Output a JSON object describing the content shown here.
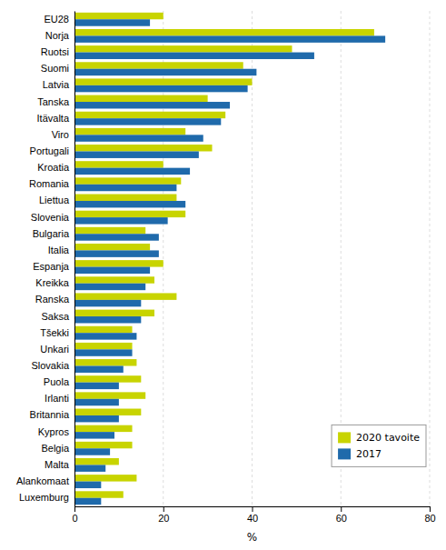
{
  "chart_data": {
    "type": "bar",
    "orientation": "horizontal",
    "categories": [
      "EU28",
      "Norja",
      "Ruotsi",
      "Suomi",
      "Latvia",
      "Tanska",
      "Itävalta",
      "Viro",
      "Portugali",
      "Kroatia",
      "Romania",
      "Liettua",
      "Slovenia",
      "Bulgaria",
      "Italia",
      "Espanja",
      "Kreikka",
      "Ranska",
      "Saksa",
      "Tšekki",
      "Unkari",
      "Slovakia",
      "Puola",
      "Irlanti",
      "Britannia",
      "Kypros",
      "Belgia",
      "Malta",
      "Alankomaat",
      "Luxemburg"
    ],
    "series": [
      {
        "name": "2020 tavoite",
        "color": "#c8d400",
        "values": [
          20,
          67.5,
          49,
          38,
          40,
          30,
          34,
          25,
          31,
          20,
          24,
          23,
          25,
          16,
          17,
          20,
          18,
          23,
          18,
          13,
          13,
          14,
          15,
          16,
          15,
          13,
          13,
          10,
          14,
          11
        ]
      },
      {
        "name": "2017",
        "color": "#1f6aab",
        "values": [
          17,
          70,
          54,
          41,
          39,
          35,
          33,
          29,
          28,
          26,
          23,
          25,
          21,
          19,
          19,
          17,
          16,
          15,
          15,
          14,
          13,
          11,
          10,
          10,
          10,
          9,
          8,
          7,
          6,
          6
        ]
      }
    ],
    "xlabel": "%",
    "xlim": [
      0,
      80
    ],
    "xticks": [
      0,
      20,
      40,
      60,
      80
    ],
    "grid": true,
    "legend": "lower right"
  }
}
